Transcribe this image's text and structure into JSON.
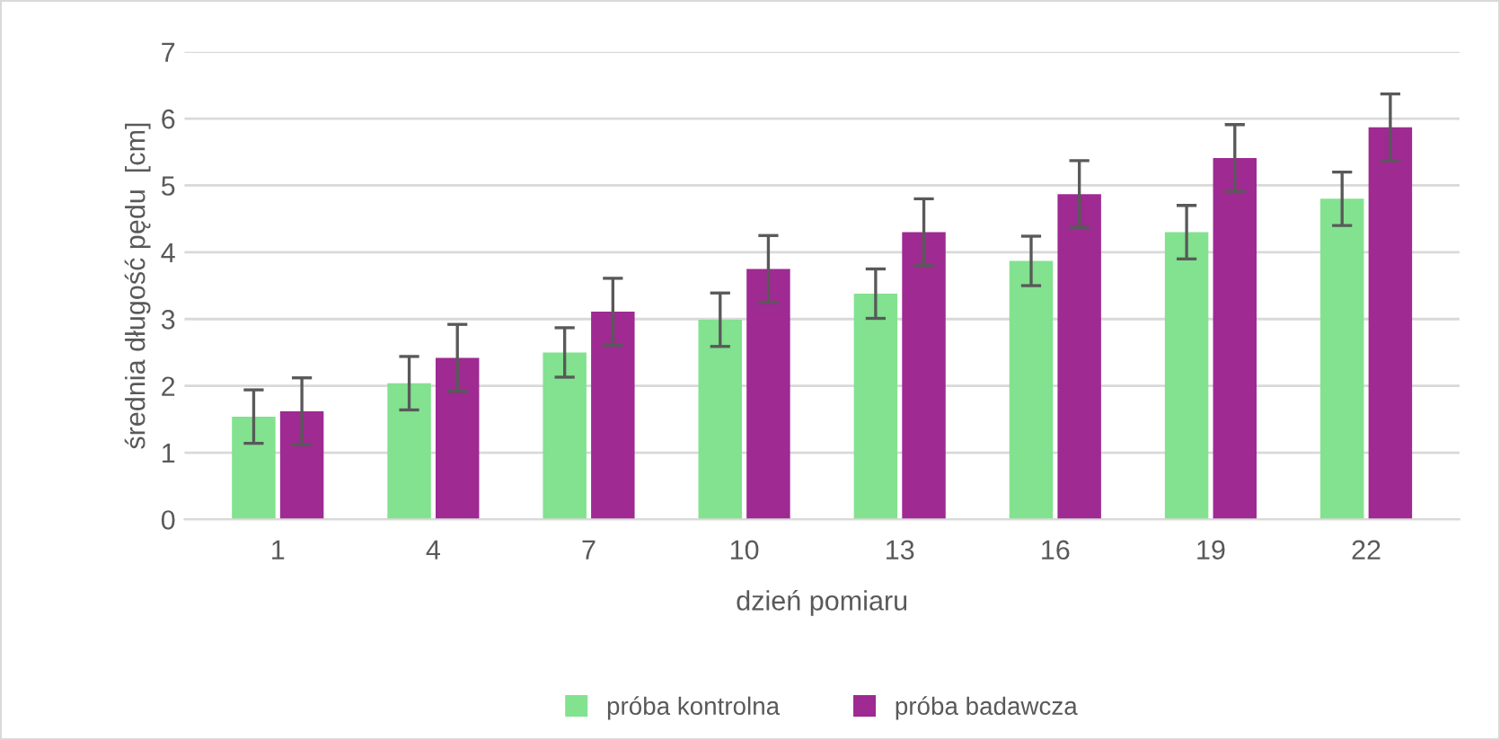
{
  "chart_data": {
    "type": "bar",
    "xlabel": "dzień pomiaru",
    "ylabel": "średnia długość pędu  [cm]",
    "categories": [
      "1",
      "4",
      "7",
      "10",
      "13",
      "16",
      "19",
      "22"
    ],
    "series": [
      {
        "name": "próba kontrolna",
        "color": "#82e28f",
        "values": [
          1.54,
          2.04,
          2.5,
          2.99,
          3.38,
          3.87,
          4.3,
          4.8
        ],
        "errors": [
          0.4,
          0.4,
          0.37,
          0.4,
          0.37,
          0.37,
          0.4,
          0.4
        ]
      },
      {
        "name": "próba badawcza",
        "color": "#9e2a92",
        "values": [
          1.62,
          2.42,
          3.11,
          3.75,
          4.3,
          4.87,
          5.41,
          5.87
        ],
        "errors": [
          0.5,
          0.5,
          0.5,
          0.5,
          0.5,
          0.5,
          0.5,
          0.5
        ]
      }
    ],
    "ylim": [
      0,
      7
    ],
    "yticks": [
      0,
      1,
      2,
      3,
      4,
      5,
      6,
      7
    ],
    "grid": "y",
    "legend": "bottom"
  }
}
